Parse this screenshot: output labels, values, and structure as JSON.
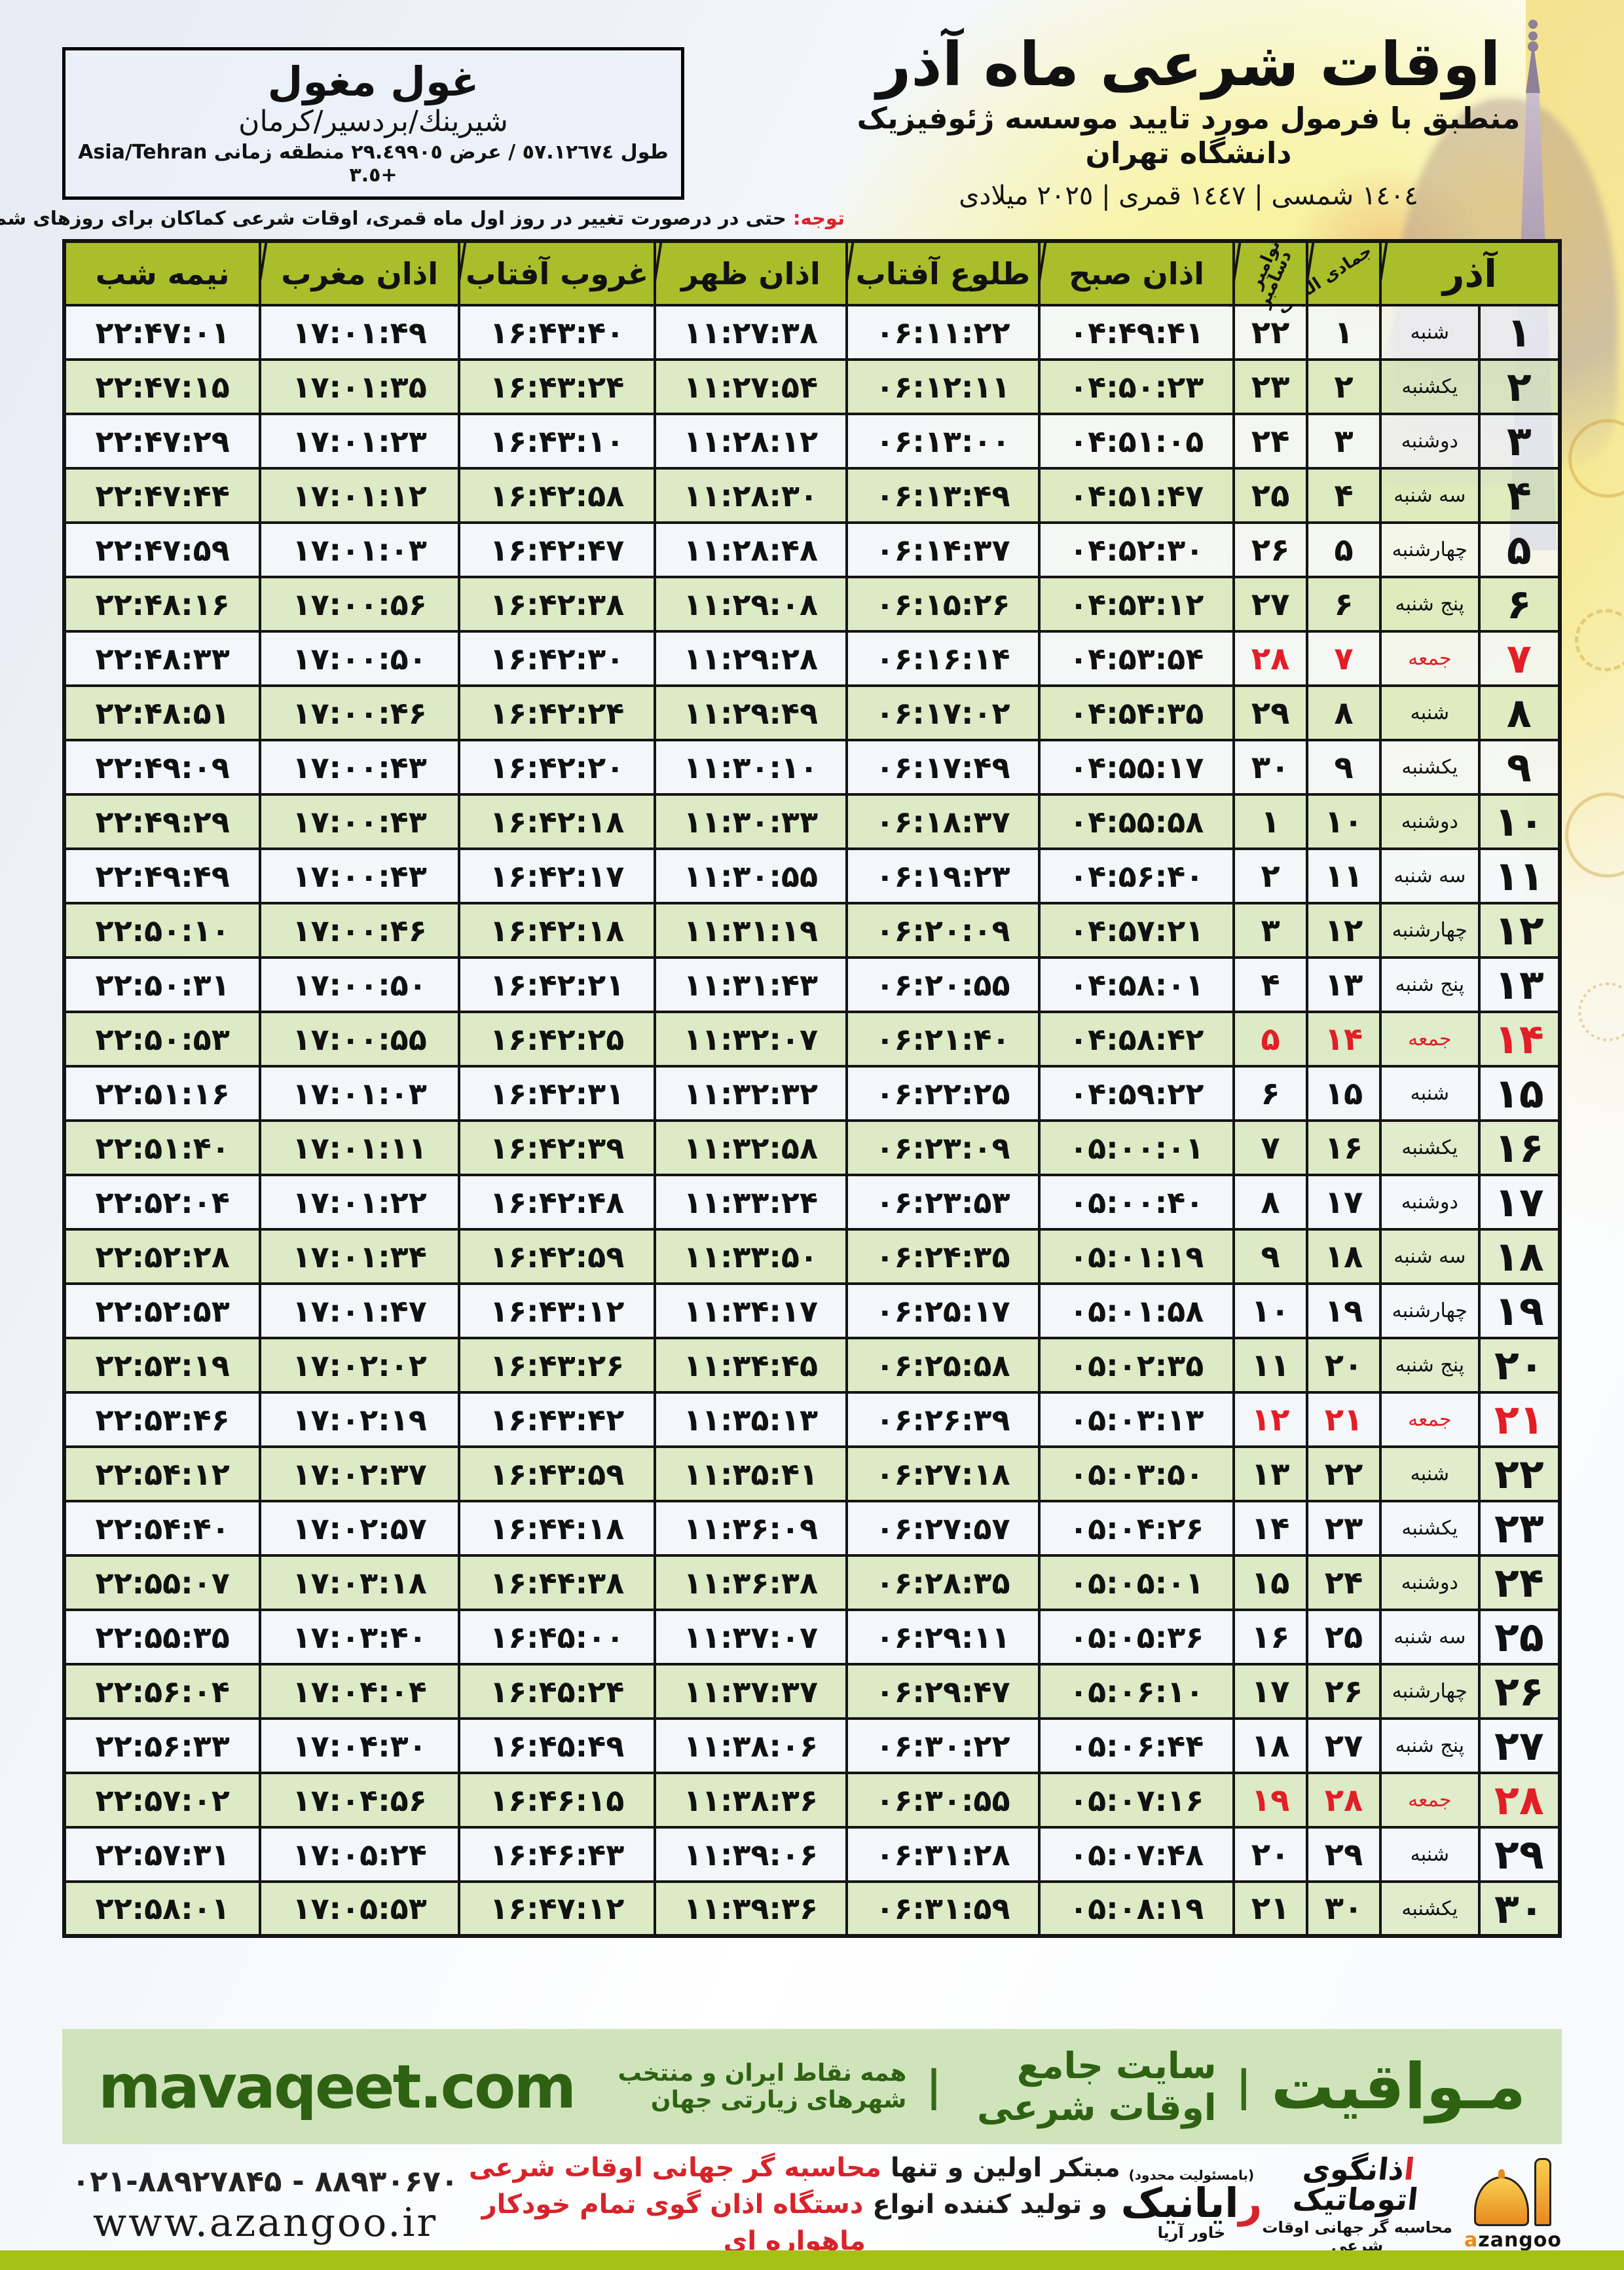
{
  "location": {
    "name": "غول مغول",
    "region": "شيرينك/بردسير/كرمان",
    "coords": "طول ٥٧.١٢٦٧٤ / عرض ٢٩.٤٩٩٠٥ منطقه زمانی Asia/Tehran +٣.٥"
  },
  "header": {
    "title": "اوقات شرعی ماه آذر",
    "subtitle": "منطبق با فرمول مورد تایید موسسه ژئوفیزیک دانشگاه تهران",
    "years": "١٤٠٤ شمسی | ١٤٤٧ قمری | ٢٠٢٥ میلادی"
  },
  "note": {
    "label": "توجه:",
    "text": " حتی در درصورت تغییر در روز اول ماه قمری، اوقات شرعی کماکان برای روزهای شمسی و میلادی معتبر است."
  },
  "table": {
    "col_month": "آذر",
    "col_lunar": "جمادی الثانی",
    "col_greg_line1": "نوامبر",
    "col_greg_line2": "دسامبر",
    "col_sobh": "اذان صبح",
    "col_tolu": "طلوع آفتاب",
    "col_zohr": "اذان ظهر",
    "col_ghorub": "غروب آفتاب",
    "col_maghreb": "اذان مغرب",
    "col_nimeshab": "نیمه شب",
    "rows": [
      {
        "day": "۱",
        "weekday": "شنبه",
        "lunar": "۱",
        "greg": "۲۲",
        "sobh": "۰۴:۴۹:۴۱",
        "tolu": "۰۶:۱۱:۲۲",
        "zohr": "۱۱:۲۷:۳۸",
        "ghorub": "۱۶:۴۳:۴۰",
        "maghreb": "۱۷:۰۱:۴۹",
        "nimeshab": "۲۲:۴۷:۰۱",
        "friday": false
      },
      {
        "day": "۲",
        "weekday": "یکشنبه",
        "lunar": "۲",
        "greg": "۲۳",
        "sobh": "۰۴:۵۰:۲۳",
        "tolu": "۰۶:۱۲:۱۱",
        "zohr": "۱۱:۲۷:۵۴",
        "ghorub": "۱۶:۴۳:۲۴",
        "maghreb": "۱۷:۰۱:۳۵",
        "nimeshab": "۲۲:۴۷:۱۵",
        "friday": false
      },
      {
        "day": "۳",
        "weekday": "دوشنبه",
        "lunar": "۳",
        "greg": "۲۴",
        "sobh": "۰۴:۵۱:۰۵",
        "tolu": "۰۶:۱۳:۰۰",
        "zohr": "۱۱:۲۸:۱۲",
        "ghorub": "۱۶:۴۳:۱۰",
        "maghreb": "۱۷:۰۱:۲۳",
        "nimeshab": "۲۲:۴۷:۲۹",
        "friday": false
      },
      {
        "day": "۴",
        "weekday": "سه شنبه",
        "lunar": "۴",
        "greg": "۲۵",
        "sobh": "۰۴:۵۱:۴۷",
        "tolu": "۰۶:۱۳:۴۹",
        "zohr": "۱۱:۲۸:۳۰",
        "ghorub": "۱۶:۴۲:۵۸",
        "maghreb": "۱۷:۰۱:۱۲",
        "nimeshab": "۲۲:۴۷:۴۴",
        "friday": false
      },
      {
        "day": "۵",
        "weekday": "چهارشنبه",
        "lunar": "۵",
        "greg": "۲۶",
        "sobh": "۰۴:۵۲:۳۰",
        "tolu": "۰۶:۱۴:۳۷",
        "zohr": "۱۱:۲۸:۴۸",
        "ghorub": "۱۶:۴۲:۴۷",
        "maghreb": "۱۷:۰۱:۰۳",
        "nimeshab": "۲۲:۴۷:۵۹",
        "friday": false
      },
      {
        "day": "۶",
        "weekday": "پنج شنبه",
        "lunar": "۶",
        "greg": "۲۷",
        "sobh": "۰۴:۵۳:۱۲",
        "tolu": "۰۶:۱۵:۲۶",
        "zohr": "۱۱:۲۹:۰۸",
        "ghorub": "۱۶:۴۲:۳۸",
        "maghreb": "۱۷:۰۰:۵۶",
        "nimeshab": "۲۲:۴۸:۱۶",
        "friday": false
      },
      {
        "day": "۷",
        "weekday": "جمعه",
        "lunar": "۷",
        "greg": "۲۸",
        "sobh": "۰۴:۵۳:۵۴",
        "tolu": "۰۶:۱۶:۱۴",
        "zohr": "۱۱:۲۹:۲۸",
        "ghorub": "۱۶:۴۲:۳۰",
        "maghreb": "۱۷:۰۰:۵۰",
        "nimeshab": "۲۲:۴۸:۳۳",
        "friday": true
      },
      {
        "day": "۸",
        "weekday": "شنبه",
        "lunar": "۸",
        "greg": "۲۹",
        "sobh": "۰۴:۵۴:۳۵",
        "tolu": "۰۶:۱۷:۰۲",
        "zohr": "۱۱:۲۹:۴۹",
        "ghorub": "۱۶:۴۲:۲۴",
        "maghreb": "۱۷:۰۰:۴۶",
        "nimeshab": "۲۲:۴۸:۵۱",
        "friday": false
      },
      {
        "day": "۹",
        "weekday": "یکشنبه",
        "lunar": "۹",
        "greg": "۳۰",
        "sobh": "۰۴:۵۵:۱۷",
        "tolu": "۰۶:۱۷:۴۹",
        "zohr": "۱۱:۳۰:۱۰",
        "ghorub": "۱۶:۴۲:۲۰",
        "maghreb": "۱۷:۰۰:۴۳",
        "nimeshab": "۲۲:۴۹:۰۹",
        "friday": false
      },
      {
        "day": "۱۰",
        "weekday": "دوشنبه",
        "lunar": "۱۰",
        "greg": "۱",
        "sobh": "۰۴:۵۵:۵۸",
        "tolu": "۰۶:۱۸:۳۷",
        "zohr": "۱۱:۳۰:۳۳",
        "ghorub": "۱۶:۴۲:۱۸",
        "maghreb": "۱۷:۰۰:۴۳",
        "nimeshab": "۲۲:۴۹:۲۹",
        "friday": false
      },
      {
        "day": "۱۱",
        "weekday": "سه شنبه",
        "lunar": "۱۱",
        "greg": "۲",
        "sobh": "۰۴:۵۶:۴۰",
        "tolu": "۰۶:۱۹:۲۳",
        "zohr": "۱۱:۳۰:۵۵",
        "ghorub": "۱۶:۴۲:۱۷",
        "maghreb": "۱۷:۰۰:۴۳",
        "nimeshab": "۲۲:۴۹:۴۹",
        "friday": false
      },
      {
        "day": "۱۲",
        "weekday": "چهارشنبه",
        "lunar": "۱۲",
        "greg": "۳",
        "sobh": "۰۴:۵۷:۲۱",
        "tolu": "۰۶:۲۰:۰۹",
        "zohr": "۱۱:۳۱:۱۹",
        "ghorub": "۱۶:۴۲:۱۸",
        "maghreb": "۱۷:۰۰:۴۶",
        "nimeshab": "۲۲:۵۰:۱۰",
        "friday": false
      },
      {
        "day": "۱۳",
        "weekday": "پنج شنبه",
        "lunar": "۱۳",
        "greg": "۴",
        "sobh": "۰۴:۵۸:۰۱",
        "tolu": "۰۶:۲۰:۵۵",
        "zohr": "۱۱:۳۱:۴۳",
        "ghorub": "۱۶:۴۲:۲۱",
        "maghreb": "۱۷:۰۰:۵۰",
        "nimeshab": "۲۲:۵۰:۳۱",
        "friday": false
      },
      {
        "day": "۱۴",
        "weekday": "جمعه",
        "lunar": "۱۴",
        "greg": "۵",
        "sobh": "۰۴:۵۸:۴۲",
        "tolu": "۰۶:۲۱:۴۰",
        "zohr": "۱۱:۳۲:۰۷",
        "ghorub": "۱۶:۴۲:۲۵",
        "maghreb": "۱۷:۰۰:۵۵",
        "nimeshab": "۲۲:۵۰:۵۳",
        "friday": true
      },
      {
        "day": "۱۵",
        "weekday": "شنبه",
        "lunar": "۱۵",
        "greg": "۶",
        "sobh": "۰۴:۵۹:۲۲",
        "tolu": "۰۶:۲۲:۲۵",
        "zohr": "۱۱:۳۲:۳۲",
        "ghorub": "۱۶:۴۲:۳۱",
        "maghreb": "۱۷:۰۱:۰۳",
        "nimeshab": "۲۲:۵۱:۱۶",
        "friday": false
      },
      {
        "day": "۱۶",
        "weekday": "یکشنبه",
        "lunar": "۱۶",
        "greg": "۷",
        "sobh": "۰۵:۰۰:۰۱",
        "tolu": "۰۶:۲۳:۰۹",
        "zohr": "۱۱:۳۲:۵۸",
        "ghorub": "۱۶:۴۲:۳۹",
        "maghreb": "۱۷:۰۱:۱۱",
        "nimeshab": "۲۲:۵۱:۴۰",
        "friday": false
      },
      {
        "day": "۱۷",
        "weekday": "دوشنبه",
        "lunar": "۱۷",
        "greg": "۸",
        "sobh": "۰۵:۰۰:۴۰",
        "tolu": "۰۶:۲۳:۵۳",
        "zohr": "۱۱:۳۳:۲۴",
        "ghorub": "۱۶:۴۲:۴۸",
        "maghreb": "۱۷:۰۱:۲۲",
        "nimeshab": "۲۲:۵۲:۰۴",
        "friday": false
      },
      {
        "day": "۱۸",
        "weekday": "سه شنبه",
        "lunar": "۱۸",
        "greg": "۹",
        "sobh": "۰۵:۰۱:۱۹",
        "tolu": "۰۶:۲۴:۳۵",
        "zohr": "۱۱:۳۳:۵۰",
        "ghorub": "۱۶:۴۲:۵۹",
        "maghreb": "۱۷:۰۱:۳۴",
        "nimeshab": "۲۲:۵۲:۲۸",
        "friday": false
      },
      {
        "day": "۱۹",
        "weekday": "چهارشنبه",
        "lunar": "۱۹",
        "greg": "۱۰",
        "sobh": "۰۵:۰۱:۵۸",
        "tolu": "۰۶:۲۵:۱۷",
        "zohr": "۱۱:۳۴:۱۷",
        "ghorub": "۱۶:۴۳:۱۲",
        "maghreb": "۱۷:۰۱:۴۷",
        "nimeshab": "۲۲:۵۲:۵۳",
        "friday": false
      },
      {
        "day": "۲۰",
        "weekday": "پنج شنبه",
        "lunar": "۲۰",
        "greg": "۱۱",
        "sobh": "۰۵:۰۲:۳۵",
        "tolu": "۰۶:۲۵:۵۸",
        "zohr": "۱۱:۳۴:۴۵",
        "ghorub": "۱۶:۴۳:۲۶",
        "maghreb": "۱۷:۰۲:۰۲",
        "nimeshab": "۲۲:۵۳:۱۹",
        "friday": false
      },
      {
        "day": "۲۱",
        "weekday": "جمعه",
        "lunar": "۲۱",
        "greg": "۱۲",
        "sobh": "۰۵:۰۳:۱۳",
        "tolu": "۰۶:۲۶:۳۹",
        "zohr": "۱۱:۳۵:۱۳",
        "ghorub": "۱۶:۴۳:۴۲",
        "maghreb": "۱۷:۰۲:۱۹",
        "nimeshab": "۲۲:۵۳:۴۶",
        "friday": true
      },
      {
        "day": "۲۲",
        "weekday": "شنبه",
        "lunar": "۲۲",
        "greg": "۱۳",
        "sobh": "۰۵:۰۳:۵۰",
        "tolu": "۰۶:۲۷:۱۸",
        "zohr": "۱۱:۳۵:۴۱",
        "ghorub": "۱۶:۴۳:۵۹",
        "maghreb": "۱۷:۰۲:۳۷",
        "nimeshab": "۲۲:۵۴:۱۲",
        "friday": false
      },
      {
        "day": "۲۳",
        "weekday": "یکشنبه",
        "lunar": "۲۳",
        "greg": "۱۴",
        "sobh": "۰۵:۰۴:۲۶",
        "tolu": "۰۶:۲۷:۵۷",
        "zohr": "۱۱:۳۶:۰۹",
        "ghorub": "۱۶:۴۴:۱۸",
        "maghreb": "۱۷:۰۲:۵۷",
        "nimeshab": "۲۲:۵۴:۴۰",
        "friday": false
      },
      {
        "day": "۲۴",
        "weekday": "دوشنبه",
        "lunar": "۲۴",
        "greg": "۱۵",
        "sobh": "۰۵:۰۵:۰۱",
        "tolu": "۰۶:۲۸:۳۵",
        "zohr": "۱۱:۳۶:۳۸",
        "ghorub": "۱۶:۴۴:۳۸",
        "maghreb": "۱۷:۰۳:۱۸",
        "nimeshab": "۲۲:۵۵:۰۷",
        "friday": false
      },
      {
        "day": "۲۵",
        "weekday": "سه شنبه",
        "lunar": "۲۵",
        "greg": "۱۶",
        "sobh": "۰۵:۰۵:۳۶",
        "tolu": "۰۶:۲۹:۱۱",
        "zohr": "۱۱:۳۷:۰۷",
        "ghorub": "۱۶:۴۵:۰۰",
        "maghreb": "۱۷:۰۳:۴۰",
        "nimeshab": "۲۲:۵۵:۳۵",
        "friday": false
      },
      {
        "day": "۲۶",
        "weekday": "چهارشنبه",
        "lunar": "۲۶",
        "greg": "۱۷",
        "sobh": "۰۵:۰۶:۱۰",
        "tolu": "۰۶:۲۹:۴۷",
        "zohr": "۱۱:۳۷:۳۷",
        "ghorub": "۱۶:۴۵:۲۴",
        "maghreb": "۱۷:۰۴:۰۴",
        "nimeshab": "۲۲:۵۶:۰۴",
        "friday": false
      },
      {
        "day": "۲۷",
        "weekday": "پنج شنبه",
        "lunar": "۲۷",
        "greg": "۱۸",
        "sobh": "۰۵:۰۶:۴۴",
        "tolu": "۰۶:۳۰:۲۲",
        "zohr": "۱۱:۳۸:۰۶",
        "ghorub": "۱۶:۴۵:۴۹",
        "maghreb": "۱۷:۰۴:۳۰",
        "nimeshab": "۲۲:۵۶:۳۳",
        "friday": false
      },
      {
        "day": "۲۸",
        "weekday": "جمعه",
        "lunar": "۲۸",
        "greg": "۱۹",
        "sobh": "۰۵:۰۷:۱۶",
        "tolu": "۰۶:۳۰:۵۵",
        "zohr": "۱۱:۳۸:۳۶",
        "ghorub": "۱۶:۴۶:۱۵",
        "maghreb": "۱۷:۰۴:۵۶",
        "nimeshab": "۲۲:۵۷:۰۲",
        "friday": true
      },
      {
        "day": "۲۹",
        "weekday": "شنبه",
        "lunar": "۲۹",
        "greg": "۲۰",
        "sobh": "۰۵:۰۷:۴۸",
        "tolu": "۰۶:۳۱:۲۸",
        "zohr": "۱۱:۳۹:۰۶",
        "ghorub": "۱۶:۴۶:۴۳",
        "maghreb": "۱۷:۰۵:۲۴",
        "nimeshab": "۲۲:۵۷:۳۱",
        "friday": false
      },
      {
        "day": "۳۰",
        "weekday": "یکشنبه",
        "lunar": "۳۰",
        "greg": "۲۱",
        "sobh": "۰۵:۰۸:۱۹",
        "tolu": "۰۶:۳۱:۵۹",
        "zohr": "۱۱:۳۹:۳۶",
        "ghorub": "۱۶:۴۷:۱۲",
        "maghreb": "۱۷:۰۵:۵۳",
        "nimeshab": "۲۲:۵۸:۰۱",
        "friday": false
      }
    ]
  },
  "mavaqeet": {
    "brand": "مـواقیت",
    "sep": "|",
    "tagline1": "سایت جامع اوقات شرعی",
    "tagline2": "همه نقاط ایران و منتخب شهرهای زیارتی جهان",
    "site": "mavaqeet.com"
  },
  "footer": {
    "phone": "۰۲۱-۸۸۹۲۷۸۴۵ - ۸۸۹۳۰۶۷۰",
    "site": "www.azangoo.ir",
    "promo_line1_black": "مبتکر اولین و تنها ",
    "promo_line1_red": "محاسبه گر جهانی اوقات شرعی",
    "promo_line2_black": "و تولید کننده انواع ",
    "promo_line2_red": "دستگاه اذان گوی تمام خودکار ماهواره ای",
    "rayanik_llc": "(بامسئولیت محدود)",
    "rayanik_first": "ر",
    "rayanik_rest": "ایانیک",
    "rayanik_sub": "خاور آریا",
    "azangoo_first": "ا",
    "azangoo_rest": "ذانگوی اتوماتیک",
    "azangoo_sub": "محاسبه گر جهانی اوقات شرعی",
    "azangoo_en_first": "a",
    "azangoo_en_rest": "zangoo"
  }
}
